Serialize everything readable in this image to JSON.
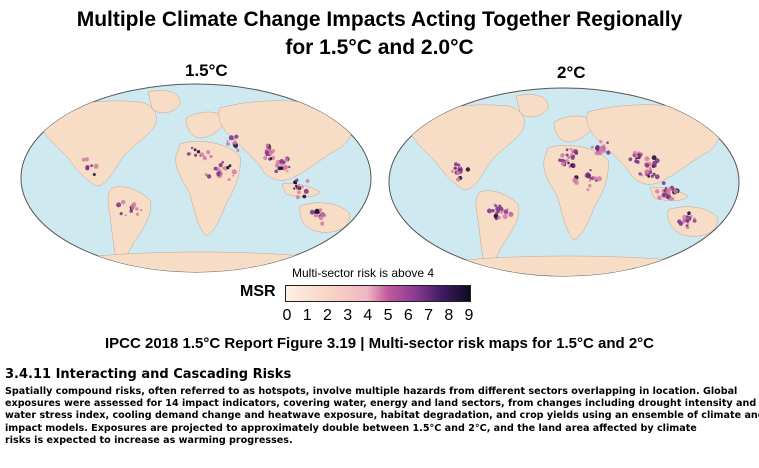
{
  "title": {
    "line1": "Multiple Climate Change Impacts Acting Together Regionally",
    "line2": "for 1.5°C and 2.0°C"
  },
  "maps": [
    {
      "label": "1.5°C",
      "icon": "world-risk-map"
    },
    {
      "label": "2°C",
      "icon": "world-risk-map"
    }
  ],
  "colors": {
    "ocean": "#cfe9f1",
    "land_low": "#f7ddc6",
    "risk_mid": "#d27aa3",
    "risk_high": "#7a2f86",
    "risk_max": "#120a24"
  },
  "colorbar": {
    "label": "MSR",
    "note": "Multi-sector risk is above 4",
    "ticks": [
      "0",
      "1",
      "2",
      "3",
      "4",
      "5",
      "6",
      "7",
      "8",
      "9"
    ],
    "min": 0,
    "max": 9
  },
  "caption": "IPCC 2018 1.5°C Report Figure 3.19 | Multi-sector risk maps for 1.5°C and  2°C",
  "section": {
    "heading": "3.4.11 Interacting and Cascading Risks",
    "lines": [
      "Spatially compound risks, often referred to as hotspots, involve multiple hazards from different sectors overlapping in location.   Global",
      "exposures were assessed for 14 impact indicators, covering water, energy and land sectors, from changes including  drought intensity and",
      "water stress index, cooling demand change and heatwave exposure, habitat degradation, and crop yields using an ensemble of climate and",
      "impact models. Exposures are projected to approximately double between 1.5°C and 2°C, and the land area affected by climate",
      "risks is expected to increase as warming progresses."
    ]
  }
}
